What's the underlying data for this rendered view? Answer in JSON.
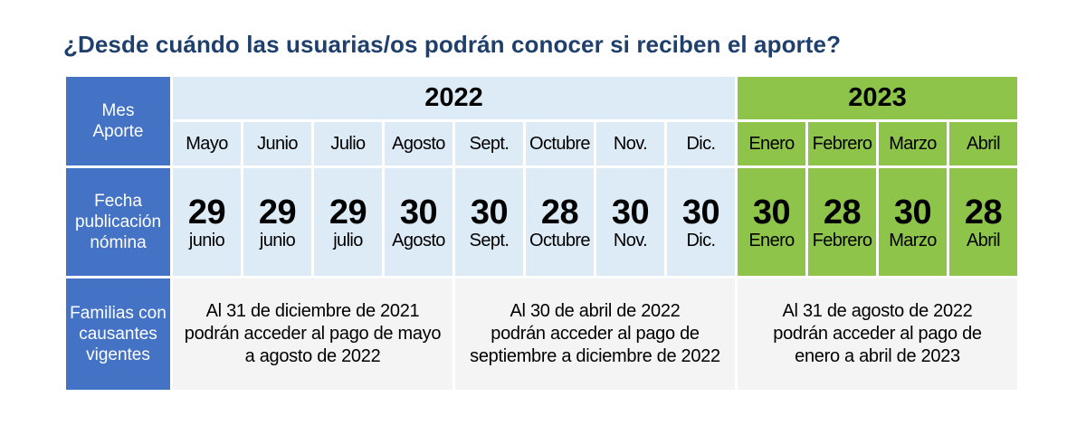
{
  "title": "¿Desde cuándo las usuarias/os podrán conocer si reciben el aporte?",
  "colors": {
    "label_bg": "#4472c4",
    "year2022_bg": "#ddebf7",
    "year2023_bg": "#8dc449",
    "families_bg": "#f4f4f4",
    "title": "#1f3f6d"
  },
  "row_labels": {
    "mes_line1": "Mes",
    "mes_line2": "Aporte",
    "fecha_line1": "Fecha",
    "fecha_line2": "publicación",
    "fecha_line3": "nómina",
    "familias_line1": "Familias con",
    "familias_line2": "causantes",
    "familias_line3": "vigentes"
  },
  "years": [
    "2022",
    "2023"
  ],
  "months": [
    "Mayo",
    "Junio",
    "Julio",
    "Agosto",
    "Sept.",
    "Octubre",
    "Nov.",
    "Dic.",
    "Enero",
    "Febrero",
    "Marzo",
    "Abril"
  ],
  "publication": [
    {
      "day": "29",
      "month": "junio"
    },
    {
      "day": "29",
      "month": "junio"
    },
    {
      "day": "29",
      "month": "julio"
    },
    {
      "day": "30",
      "month": "Agosto"
    },
    {
      "day": "30",
      "month": "Sept."
    },
    {
      "day": "28",
      "month": "Octubre"
    },
    {
      "day": "30",
      "month": "Nov."
    },
    {
      "day": "30",
      "month": "Dic."
    },
    {
      "day": "30",
      "month": "Enero"
    },
    {
      "day": "28",
      "month": "Febrero"
    },
    {
      "day": "30",
      "month": "Marzo"
    },
    {
      "day": "28",
      "month": "Abril"
    }
  ],
  "families": [
    {
      "line1": "Al 31 de diciembre de 2021",
      "line2": "podrán acceder al pago de mayo",
      "line3": "a agosto de 2022"
    },
    {
      "line1": "Al 30 de abril de 2022",
      "line2": "podrán acceder al pago de",
      "line3": "septiembre a diciembre de 2022"
    },
    {
      "line1": "Al 31 de agosto de 2022",
      "line2": "podrán acceder al pago de",
      "line3": "enero a abril de 2023"
    }
  ]
}
